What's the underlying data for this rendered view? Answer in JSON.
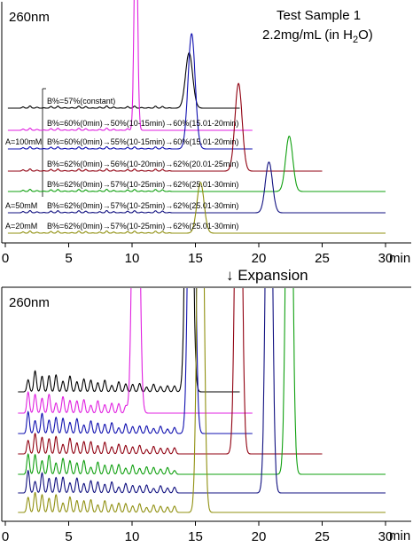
{
  "figure": {
    "top_panel": {
      "wavelength": "260nm",
      "sample_line1": "Test Sample 1",
      "sample_line2_prefix": "2.2mg/mL (in H",
      "sample_line2_sub": "2",
      "sample_line2_suffix": "O)",
      "x_unit": "min"
    },
    "expansion_label": "↓ Expansion",
    "bottom_panel": {
      "wavelength": "260nm",
      "x_unit": "min"
    }
  },
  "chart_data": [
    {
      "type": "line",
      "panel": "top",
      "xlim": [
        0,
        30
      ],
      "x_ticks": [
        "0",
        "5",
        "10",
        "15",
        "20",
        "25",
        "30"
      ],
      "grid": false,
      "series": [
        {
          "color": "#000000",
          "condition_label": "",
          "gradient_label": "B%=57%(constant)",
          "peak_x": 14.5,
          "peak_height": 0.24,
          "x_end": 18.5
        },
        {
          "color": "#e020e0",
          "condition_label": "",
          "gradient_label": "B%=60%(0min)→50%(10-15min)→60%(15.01-20min)",
          "peak_x": 10.3,
          "peak_height": 1.0,
          "x_end": 19.5
        },
        {
          "color": "#1010b0",
          "condition_label": "A=100mM",
          "gradient_label": "B%=60%(0min)→55%(10-15min)→60%(15.01-20min)",
          "peak_x": 14.7,
          "peak_height": 0.5,
          "x_end": 19.5
        },
        {
          "color": "#900010",
          "condition_label": "",
          "gradient_label": "B%=62%(0min)→56%(10-20min)→62%(20.01-25min)",
          "peak_x": 18.4,
          "peak_height": 0.38,
          "x_end": 25.0
        },
        {
          "color": "#10a010",
          "condition_label": "",
          "gradient_label": "B%=62%(0min)→57%(10-25min)→62%(25.01-30min)",
          "peak_x": 22.4,
          "peak_height": 0.24,
          "x_end": 30.0
        },
        {
          "color": "#101080",
          "condition_label": "A=50mM",
          "gradient_label": "B%=62%(0min)→57%(10-25min)→62%(25.01-30min)",
          "peak_x": 20.8,
          "peak_height": 0.22,
          "x_end": 30.0
        },
        {
          "color": "#909010",
          "condition_label": "A=20mM",
          "gradient_label": "B%=62%(0min)→57%(10-25min)→62%(25.01-30min)",
          "peak_x": 15.4,
          "peak_height": 0.22,
          "x_end": 30.0
        }
      ]
    },
    {
      "type": "line",
      "panel": "bottom",
      "xlim": [
        0,
        30
      ],
      "x_ticks": [
        "0",
        "5",
        "10",
        "15",
        "20",
        "25",
        "30"
      ],
      "grid": false,
      "series": [
        {
          "color": "#000000",
          "peak_x": 14.5,
          "x_end": 18.5
        },
        {
          "color": "#e020e0",
          "peak_x": 10.3,
          "x_end": 19.5
        },
        {
          "color": "#1010b0",
          "peak_x": 14.7,
          "x_end": 19.5
        },
        {
          "color": "#900010",
          "peak_x": 18.4,
          "x_end": 25.0
        },
        {
          "color": "#10a010",
          "peak_x": 22.4,
          "x_end": 30.0
        },
        {
          "color": "#101080",
          "peak_x": 20.8,
          "x_end": 30.0
        },
        {
          "color": "#909010",
          "peak_x": 15.4,
          "x_end": 30.0
        }
      ]
    }
  ]
}
